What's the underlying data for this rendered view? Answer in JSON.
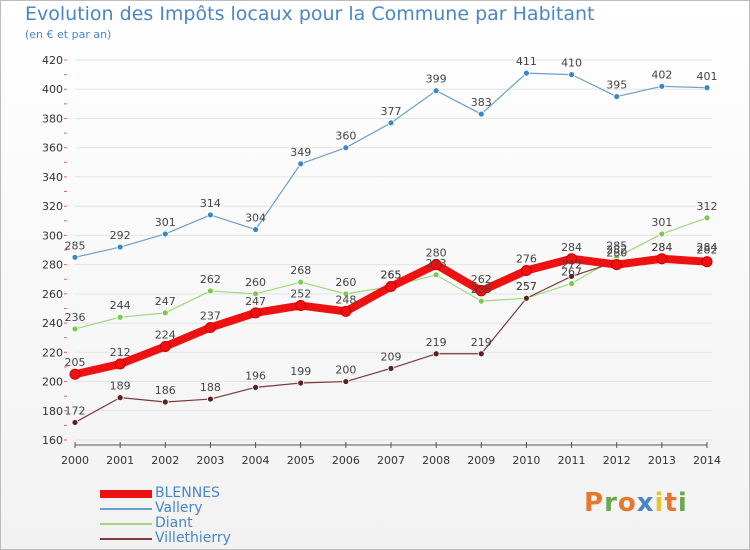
{
  "title": "Evolution des Impôts locaux pour la Commune par Habitant",
  "subtitle": "(en € et par an)",
  "logo": {
    "text": "Proxiti",
    "colors": [
      "#e8772e",
      "#6aa84f",
      "#e8772e",
      "#4a86c5",
      "#e8c42e",
      "#e8772e",
      "#6aa84f"
    ]
  },
  "chart_data": {
    "type": "line",
    "title": "Evolution des Impôts locaux pour la Commune par Habitant",
    "subtitle": "(en € et par an)",
    "x": [
      "2000",
      "2001",
      "2002",
      "2003",
      "2004",
      "2005",
      "2006",
      "2007",
      "2008",
      "2009",
      "2010",
      "2011",
      "2012",
      "2013",
      "2014"
    ],
    "ylim": [
      160,
      420
    ],
    "yticks": [
      160,
      180,
      200,
      220,
      240,
      260,
      280,
      300,
      320,
      340,
      360,
      380,
      400,
      420
    ],
    "grid": "horizontal",
    "legend": "bottom-left",
    "series": [
      {
        "name": "Vallery",
        "color": "#6a9fcc",
        "dot": "#3b86c9",
        "values": [
          285,
          292,
          301,
          314,
          304,
          349,
          360,
          377,
          399,
          383,
          411,
          410,
          395,
          402,
          401
        ],
        "labels": [
          "285",
          "292",
          "301",
          "314",
          "304",
          "349",
          "360",
          "377",
          "399",
          "383",
          "411",
          "410",
          "395",
          "402",
          "401"
        ]
      },
      {
        "name": "Diant",
        "color": "#9dd87d",
        "dot": "#7dc94e",
        "values": [
          236,
          244,
          247,
          262,
          260,
          268,
          260,
          265,
          273,
          255,
          257,
          267,
          285,
          301,
          312
        ],
        "labels": [
          "236",
          "244",
          "247",
          "262",
          "260",
          "268",
          "260",
          "265",
          "273",
          "255",
          "257",
          "267",
          "285",
          "301",
          "312"
        ]
      },
      {
        "name": "Villethierry",
        "color": "#7a3b3b",
        "dot": "#5e1f1f",
        "values": [
          172,
          189,
          186,
          188,
          196,
          199,
          200,
          209,
          219,
          219,
          257,
          272,
          282,
          284,
          284
        ],
        "labels": [
          "172",
          "189",
          "186",
          "188",
          "196",
          "199",
          "200",
          "209",
          "219",
          "219",
          "257",
          "272",
          "282",
          "284",
          "284"
        ]
      },
      {
        "name": "BLENNES",
        "color": "#ee1111",
        "dot": "#ee1111",
        "values": [
          205,
          212,
          224,
          237,
          247,
          252,
          248,
          265,
          280,
          262,
          276,
          284,
          280,
          284,
          282
        ],
        "labels": [
          "205",
          "212",
          "224",
          "237",
          "247",
          "252",
          "248",
          "265",
          "280",
          "262",
          "276",
          "284",
          "280",
          "284",
          "282"
        ]
      }
    ],
    "legend_order": [
      "BLENNES",
      "Vallery",
      "Diant",
      "Villethierry"
    ]
  }
}
